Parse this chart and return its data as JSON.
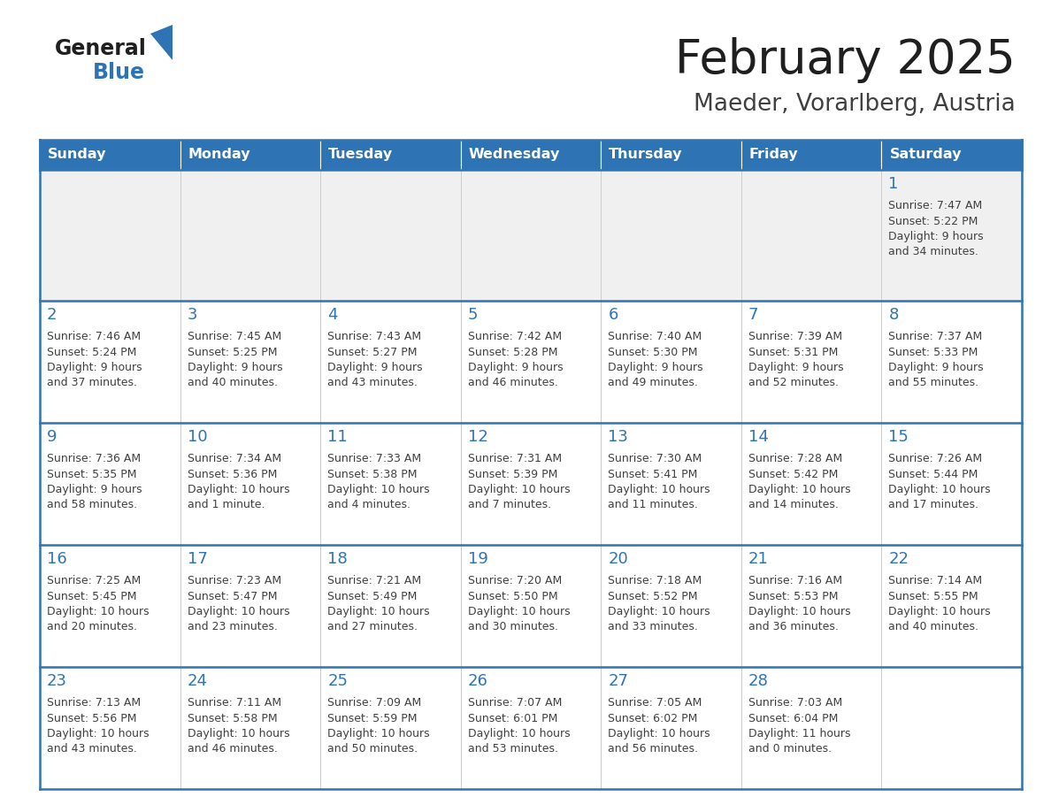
{
  "title": "February 2025",
  "subtitle": "Maeder, Vorarlberg, Austria",
  "days_of_week": [
    "Sunday",
    "Monday",
    "Tuesday",
    "Wednesday",
    "Thursday",
    "Friday",
    "Saturday"
  ],
  "header_bg": "#2E74B5",
  "header_text": "#FFFFFF",
  "row_bg_light": "#FFFFFF",
  "row_bg_dark": "#F0F0F0",
  "cell_border_blue": "#2E74B5",
  "cell_border_light": "#CCCCCC",
  "day_number_color": "#2E74B5",
  "info_text_color": "#404040",
  "title_color": "#1F1F1F",
  "subtitle_color": "#404040",
  "logo_general_color": "#1F1F1F",
  "logo_blue_color": "#2E74B5",
  "logo_triangle_color": "#2E74B5",
  "calendar_data": [
    [
      null,
      null,
      null,
      null,
      null,
      null,
      {
        "day": 1,
        "sunrise": "7:47 AM",
        "sunset": "5:22 PM",
        "daylight": "9 hours and 34 minutes."
      }
    ],
    [
      {
        "day": 2,
        "sunrise": "7:46 AM",
        "sunset": "5:24 PM",
        "daylight": "9 hours and 37 minutes."
      },
      {
        "day": 3,
        "sunrise": "7:45 AM",
        "sunset": "5:25 PM",
        "daylight": "9 hours and 40 minutes."
      },
      {
        "day": 4,
        "sunrise": "7:43 AM",
        "sunset": "5:27 PM",
        "daylight": "9 hours and 43 minutes."
      },
      {
        "day": 5,
        "sunrise": "7:42 AM",
        "sunset": "5:28 PM",
        "daylight": "9 hours and 46 minutes."
      },
      {
        "day": 6,
        "sunrise": "7:40 AM",
        "sunset": "5:30 PM",
        "daylight": "9 hours and 49 minutes."
      },
      {
        "day": 7,
        "sunrise": "7:39 AM",
        "sunset": "5:31 PM",
        "daylight": "9 hours and 52 minutes."
      },
      {
        "day": 8,
        "sunrise": "7:37 AM",
        "sunset": "5:33 PM",
        "daylight": "9 hours and 55 minutes."
      }
    ],
    [
      {
        "day": 9,
        "sunrise": "7:36 AM",
        "sunset": "5:35 PM",
        "daylight": "9 hours and 58 minutes."
      },
      {
        "day": 10,
        "sunrise": "7:34 AM",
        "sunset": "5:36 PM",
        "daylight": "10 hours and 1 minute."
      },
      {
        "day": 11,
        "sunrise": "7:33 AM",
        "sunset": "5:38 PM",
        "daylight": "10 hours and 4 minutes."
      },
      {
        "day": 12,
        "sunrise": "7:31 AM",
        "sunset": "5:39 PM",
        "daylight": "10 hours and 7 minutes."
      },
      {
        "day": 13,
        "sunrise": "7:30 AM",
        "sunset": "5:41 PM",
        "daylight": "10 hours and 11 minutes."
      },
      {
        "day": 14,
        "sunrise": "7:28 AM",
        "sunset": "5:42 PM",
        "daylight": "10 hours and 14 minutes."
      },
      {
        "day": 15,
        "sunrise": "7:26 AM",
        "sunset": "5:44 PM",
        "daylight": "10 hours and 17 minutes."
      }
    ],
    [
      {
        "day": 16,
        "sunrise": "7:25 AM",
        "sunset": "5:45 PM",
        "daylight": "10 hours and 20 minutes."
      },
      {
        "day": 17,
        "sunrise": "7:23 AM",
        "sunset": "5:47 PM",
        "daylight": "10 hours and 23 minutes."
      },
      {
        "day": 18,
        "sunrise": "7:21 AM",
        "sunset": "5:49 PM",
        "daylight": "10 hours and 27 minutes."
      },
      {
        "day": 19,
        "sunrise": "7:20 AM",
        "sunset": "5:50 PM",
        "daylight": "10 hours and 30 minutes."
      },
      {
        "day": 20,
        "sunrise": "7:18 AM",
        "sunset": "5:52 PM",
        "daylight": "10 hours and 33 minutes."
      },
      {
        "day": 21,
        "sunrise": "7:16 AM",
        "sunset": "5:53 PM",
        "daylight": "10 hours and 36 minutes."
      },
      {
        "day": 22,
        "sunrise": "7:14 AM",
        "sunset": "5:55 PM",
        "daylight": "10 hours and 40 minutes."
      }
    ],
    [
      {
        "day": 23,
        "sunrise": "7:13 AM",
        "sunset": "5:56 PM",
        "daylight": "10 hours and 43 minutes."
      },
      {
        "day": 24,
        "sunrise": "7:11 AM",
        "sunset": "5:58 PM",
        "daylight": "10 hours and 46 minutes."
      },
      {
        "day": 25,
        "sunrise": "7:09 AM",
        "sunset": "5:59 PM",
        "daylight": "10 hours and 50 minutes."
      },
      {
        "day": 26,
        "sunrise": "7:07 AM",
        "sunset": "6:01 PM",
        "daylight": "10 hours and 53 minutes."
      },
      {
        "day": 27,
        "sunrise": "7:05 AM",
        "sunset": "6:02 PM",
        "daylight": "10 hours and 56 minutes."
      },
      {
        "day": 28,
        "sunrise": "7:03 AM",
        "sunset": "6:04 PM",
        "daylight": "11 hours and 0 minutes."
      },
      null
    ]
  ]
}
